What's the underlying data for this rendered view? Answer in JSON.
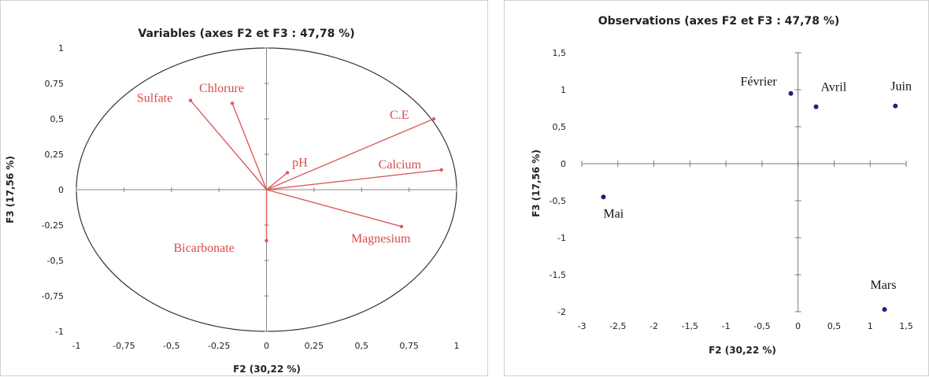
{
  "chart_data": [
    {
      "type": "scatter",
      "title": "Variables (axes F2 et F3 : 47,78 %)",
      "xlabel": "F2 (30,22 %)",
      "ylabel": "F3 (17,56 %)",
      "xlim": [
        -1,
        1
      ],
      "ylim": [
        -1,
        1
      ],
      "xticks": [
        "-1",
        "-0,75",
        "-0,5",
        "-0,25",
        "0",
        "0,25",
        "0,5",
        "0,75",
        "1"
      ],
      "yticks": [
        "1",
        "0,75",
        "0,5",
        "0,25",
        "0",
        "-0,25",
        "-0,5",
        "-0,75",
        "-1"
      ],
      "xtick_values": [
        -1,
        -0.75,
        -0.5,
        -0.25,
        0,
        0.25,
        0.5,
        0.75,
        1
      ],
      "ytick_values": [
        1,
        0.75,
        0.5,
        0.25,
        0,
        -0.25,
        -0.5,
        -0.75,
        -1
      ],
      "correlation_circle": true,
      "vector_color": "#e05a5a",
      "points": [
        {
          "label": "Chlorure",
          "x": -0.18,
          "y": 0.61
        },
        {
          "label": "Sulfate",
          "x": -0.4,
          "y": 0.63
        },
        {
          "label": "C.E",
          "x": 0.88,
          "y": 0.5
        },
        {
          "label": "pH",
          "x": 0.11,
          "y": 0.12
        },
        {
          "label": "Calcium",
          "x": 0.92,
          "y": 0.14
        },
        {
          "label": "Magnesium",
          "x": 0.71,
          "y": -0.26
        },
        {
          "label": "Bicarbonate",
          "x": 0.0,
          "y": -0.36
        }
      ]
    },
    {
      "type": "scatter",
      "title": "Observations (axes F2 et F3 : 47,78 %)",
      "xlabel": "F2 (30,22 %)",
      "ylabel": "F3 (17,56 %)",
      "xlim": [
        -3,
        1.5
      ],
      "ylim": [
        -2,
        1.5
      ],
      "xticks": [
        "-3",
        "-2,5",
        "-2",
        "-1,5",
        "-1",
        "-0,5",
        "0",
        "0,5",
        "1",
        "1,5"
      ],
      "yticks": [
        "1,5",
        "1",
        "0,5",
        "0",
        "-0,5",
        "-1",
        "-1,5",
        "-2"
      ],
      "xtick_values": [
        -3,
        -2.5,
        -2,
        -1.5,
        -1,
        -0.5,
        0,
        0.5,
        1,
        1.5
      ],
      "ytick_values": [
        1.5,
        1,
        0.5,
        0,
        -0.5,
        -1,
        -1.5,
        -2
      ],
      "point_color": "#1a237e",
      "points": [
        {
          "label": "Février",
          "x": -0.1,
          "y": 0.95
        },
        {
          "label": "Avril",
          "x": 0.25,
          "y": 0.77
        },
        {
          "label": "Juin",
          "x": 1.35,
          "y": 0.78
        },
        {
          "label": "Mai",
          "x": -2.7,
          "y": -0.45
        },
        {
          "label": "Mars",
          "x": 1.2,
          "y": -1.97
        }
      ]
    }
  ]
}
